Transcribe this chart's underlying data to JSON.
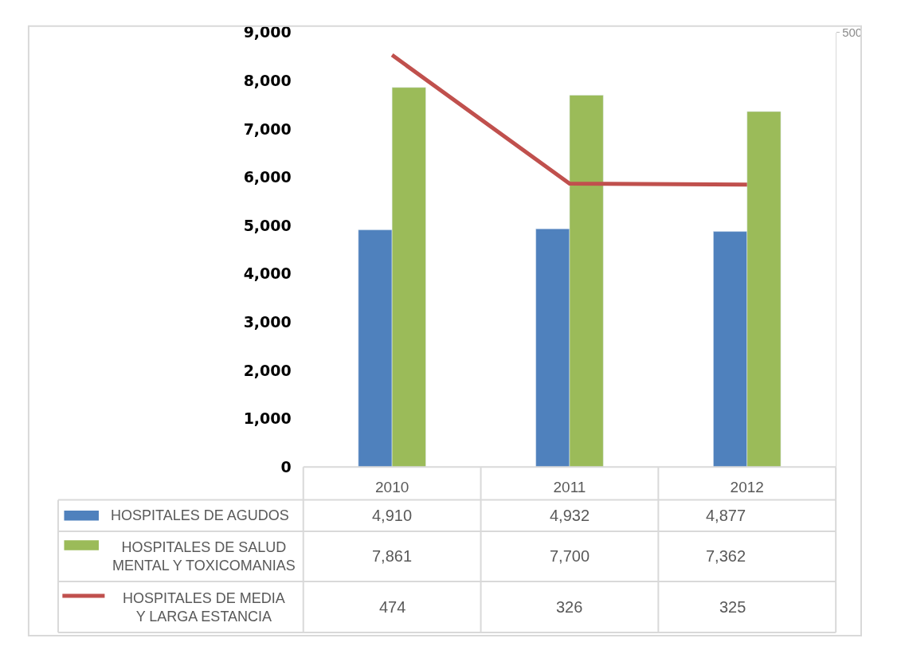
{
  "chart_data": {
    "type": "bar",
    "categories": [
      "2010",
      "2011",
      "2012"
    ],
    "series": [
      {
        "name": "HOSPITALES DE AGUDOS",
        "color": "#4f81bd",
        "values": [
          4910,
          4932,
          4877
        ],
        "value_labels": [
          "4,910",
          "4,932",
          "4,877"
        ]
      },
      {
        "name": "HOSPITALES DE SALUD MENTAL Y TOXICOMANIAS",
        "color": "#9bbb59",
        "values": [
          7861,
          7700,
          7362
        ],
        "value_labels": [
          "7,861",
          "7,700",
          "7,362"
        ]
      },
      {
        "name": "HOSPITALES DE MEDIA Y LARGA ESTANCIA",
        "type": "line",
        "axis": "y2",
        "color": "#c0504d",
        "values": [
          474,
          326,
          325
        ],
        "value_labels": [
          "474",
          "326",
          "325"
        ]
      }
    ],
    "ylim": [
      0,
      9000
    ],
    "yticks": [
      {
        "value": 0,
        "label": "0"
      },
      {
        "value": 1000,
        "label": "1,000"
      },
      {
        "value": 2000,
        "label": "2,000"
      },
      {
        "value": 3000,
        "label": "3,000"
      },
      {
        "value": 4000,
        "label": "4,000"
      },
      {
        "value": 5000,
        "label": "5,000"
      },
      {
        "value": 6000,
        "label": "6,000"
      },
      {
        "value": 7000,
        "label": "7,000"
      },
      {
        "value": 8000,
        "label": "8,000"
      },
      {
        "value": 9000,
        "label": "9,000"
      }
    ],
    "y2lim": [
      0,
      500
    ],
    "y2ticks": [
      500
    ],
    "legend": "bottom"
  }
}
